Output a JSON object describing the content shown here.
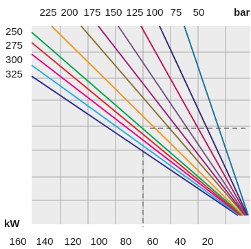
{
  "chart_data": {
    "type": "line",
    "plot_background": "#ececec",
    "grid": true,
    "top_axis": {
      "ticks": [
        "225",
        "200",
        "175",
        "150",
        "125",
        "100",
        "75",
        "50"
      ],
      "unit": "bar"
    },
    "left_axis": {
      "ticks": [
        "250",
        "275",
        "300",
        "325"
      ]
    },
    "bottom_axis": {
      "ticks": [
        "160",
        "140",
        "120",
        "100",
        "80",
        "60",
        "40",
        "20"
      ],
      "unit": "kW"
    },
    "series": [
      {
        "color": "#2e3192"
      },
      {
        "color": "#29abe2"
      },
      {
        "color": "#ec008c"
      },
      {
        "color": "#e0262b"
      },
      {
        "color": "#00a651"
      },
      {
        "color": "#f7941d"
      },
      {
        "color": "#8b7331"
      },
      {
        "color": "#a0207a"
      },
      {
        "color": "#7a5585"
      },
      {
        "color": "#c0185e"
      },
      {
        "color": "#3a2a7a"
      },
      {
        "color": "#1b75a2"
      }
    ],
    "guide_lines": {
      "style": "dashed",
      "color": "#333333",
      "kw_value": 80
    }
  }
}
